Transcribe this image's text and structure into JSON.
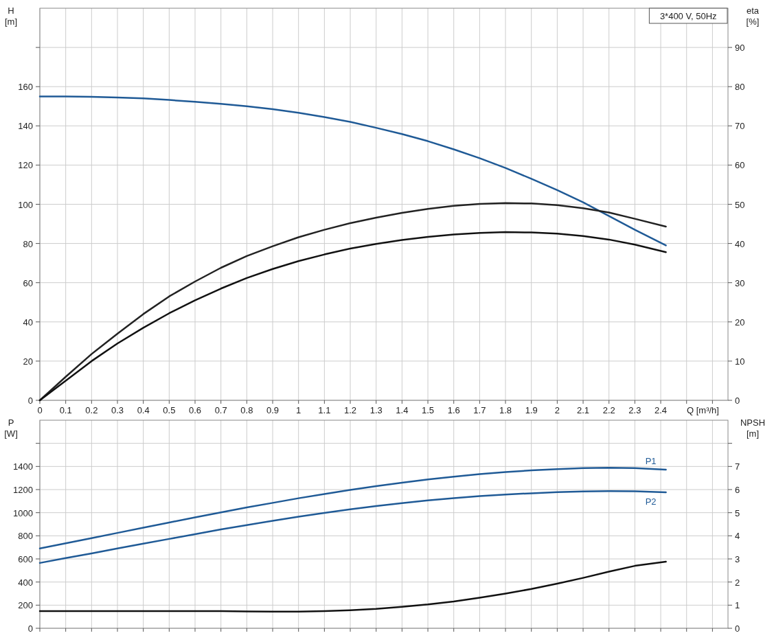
{
  "chart_data": [
    {
      "type": "line",
      "ylabel": "H [m]",
      "y2label": "eta [%]",
      "xlabel": "Q [m³/h]",
      "annotations": [
        "3*400 V, 50Hz"
      ],
      "xlim": [
        0,
        2.66
      ],
      "xticks": [
        0,
        0.1,
        0.2,
        0.3,
        0.4,
        0.5,
        0.6,
        0.7,
        0.8,
        0.9,
        1.0,
        1.1,
        1.2,
        1.3,
        1.4,
        1.5,
        1.6,
        1.7,
        1.8,
        1.9,
        2.0,
        2.1,
        2.2,
        2.3,
        2.4,
        {
          "value": 2.5,
          "label": null
        },
        {
          "value": 2.6,
          "label": null
        }
      ],
      "ylim": [
        0,
        200
      ],
      "yticks": [
        0,
        20,
        40,
        60,
        80,
        100,
        120,
        140,
        160,
        {
          "value": 180,
          "label": null
        }
      ],
      "y2lim": [
        0,
        100
      ],
      "y2ticks": [
        0,
        10,
        20,
        30,
        40,
        50,
        60,
        70,
        80,
        90
      ],
      "x": [
        0,
        0.1,
        0.2,
        0.3,
        0.4,
        0.5,
        0.6,
        0.7,
        0.8,
        0.9,
        1.0,
        1.1,
        1.2,
        1.3,
        1.4,
        1.5,
        1.6,
        1.7,
        1.8,
        1.9,
        2.0,
        2.1,
        2.2,
        2.3,
        2.42
      ],
      "grid": true,
      "series": [
        {
          "color": "#1f5a96",
          "values": [
            155,
            155,
            154.8,
            154.5,
            154,
            153.2,
            152.3,
            151.2,
            150,
            148.5,
            146.7,
            144.5,
            142,
            139,
            135.8,
            132.2,
            128,
            123.5,
            118.5,
            113,
            107.2,
            101,
            94,
            87,
            79
          ]
        },
        {
          "color": "#222222",
          "axis": "y2",
          "values": [
            0,
            6,
            11.8,
            17,
            22,
            26.5,
            30.3,
            33.8,
            36.8,
            39.3,
            41.6,
            43.5,
            45.2,
            46.6,
            47.8,
            48.8,
            49.6,
            50.1,
            50.3,
            50.2,
            49.8,
            49,
            47.9,
            46.3,
            44.3
          ]
        },
        {
          "color": "#111111",
          "axis": "y2",
          "values": [
            0,
            5,
            10,
            14.5,
            18.5,
            22.2,
            25.5,
            28.5,
            31.2,
            33.5,
            35.5,
            37.2,
            38.7,
            39.9,
            40.9,
            41.7,
            42.3,
            42.7,
            42.9,
            42.8,
            42.5,
            41.9,
            41,
            39.7,
            37.8
          ]
        }
      ]
    },
    {
      "type": "line",
      "ylabel": "P [W]",
      "y2label": "NPSH [m]",
      "tick_labels": "y",
      "xlim": [
        0,
        2.66
      ],
      "xticks": [
        0,
        0.1,
        0.2,
        0.3,
        0.4,
        0.5,
        0.6,
        0.7,
        0.8,
        0.9,
        1.0,
        1.1,
        1.2,
        1.3,
        1.4,
        1.5,
        1.6,
        1.7,
        1.8,
        1.9,
        2.0,
        2.1,
        2.2,
        2.3,
        2.4,
        2.5,
        2.6
      ],
      "ylim": [
        0,
        1800
      ],
      "yticks": [
        0,
        200,
        400,
        600,
        800,
        1000,
        1200,
        1400,
        {
          "value": 1600,
          "label": null
        }
      ],
      "y2lim": [
        0,
        9
      ],
      "y2ticks": [
        0,
        1,
        2,
        3,
        4,
        5,
        6,
        7,
        {
          "value": 8,
          "label": null
        }
      ],
      "x": [
        0,
        0.1,
        0.2,
        0.3,
        0.4,
        0.5,
        0.6,
        0.7,
        0.8,
        0.9,
        1.0,
        1.1,
        1.2,
        1.3,
        1.4,
        1.5,
        1.6,
        1.7,
        1.8,
        1.9,
        2.0,
        2.1,
        2.2,
        2.3,
        2.42
      ],
      "grid": true,
      "series": [
        {
          "name": "P1",
          "color": "#1f5a96",
          "values": [
            690,
            735,
            780,
            825,
            870,
            915,
            960,
            1003,
            1045,
            1085,
            1125,
            1162,
            1197,
            1230,
            1260,
            1287,
            1312,
            1333,
            1351,
            1366,
            1377,
            1385,
            1388,
            1385,
            1372
          ]
        },
        {
          "name": "P2",
          "color": "#1f5a96",
          "values": [
            565,
            607,
            648,
            690,
            732,
            773,
            814,
            855,
            893,
            930,
            965,
            998,
            1029,
            1057,
            1083,
            1106,
            1126,
            1143,
            1157,
            1168,
            1177,
            1183,
            1186,
            1185,
            1176
          ]
        },
        {
          "color": "#111111",
          "axis": "y2",
          "values": [
            0.74,
            0.74,
            0.74,
            0.74,
            0.74,
            0.74,
            0.74,
            0.74,
            0.73,
            0.72,
            0.72,
            0.74,
            0.78,
            0.84,
            0.93,
            1.03,
            1.16,
            1.32,
            1.5,
            1.7,
            1.93,
            2.18,
            2.45,
            2.7,
            2.88
          ]
        }
      ]
    }
  ]
}
